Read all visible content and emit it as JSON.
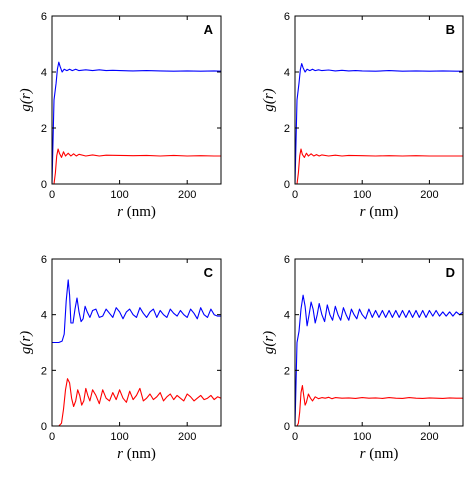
{
  "chart_data": [
    {
      "type": "line",
      "panel_label": "A",
      "xlabel": "r (nm)",
      "ylabel": "g(r)",
      "xlim": [
        0,
        250
      ],
      "ylim": [
        0,
        6
      ],
      "xticks": [
        "0",
        "100",
        "200"
      ],
      "yticks": [
        "0",
        "2",
        "4",
        "6"
      ],
      "grid": false,
      "series": [
        {
          "color": "#0000ff",
          "x": [
            0,
            3,
            6,
            8,
            10,
            12,
            15,
            18,
            22,
            26,
            30,
            35,
            40,
            50,
            60,
            70,
            80,
            90,
            100,
            120,
            140,
            160,
            180,
            200,
            220,
            240,
            250
          ],
          "y": [
            0,
            3.0,
            3.6,
            4.1,
            4.35,
            4.2,
            4.0,
            4.1,
            4.05,
            4.1,
            4.05,
            4.1,
            4.05,
            4.08,
            4.05,
            4.08,
            4.05,
            4.06,
            4.05,
            4.04,
            4.05,
            4.04,
            4.03,
            4.04,
            4.03,
            4.04,
            4.03
          ]
        },
        {
          "color": "#ff0000",
          "x": [
            0,
            3,
            5,
            7,
            9,
            11,
            14,
            17,
            20,
            24,
            28,
            32,
            36,
            40,
            50,
            60,
            70,
            80,
            100,
            120,
            140,
            160,
            180,
            200,
            220,
            240,
            250
          ],
          "y": [
            0,
            0.0,
            0.4,
            1.0,
            1.25,
            1.1,
            0.95,
            1.15,
            1.0,
            1.1,
            1.0,
            1.08,
            1.0,
            1.06,
            1.0,
            1.04,
            1.0,
            1.03,
            1.02,
            1.01,
            1.02,
            1.0,
            1.02,
            1.0,
            1.01,
            1.0,
            1.0
          ]
        }
      ]
    },
    {
      "type": "line",
      "panel_label": "B",
      "xlabel": "r (nm)",
      "ylabel": "g(r)",
      "xlim": [
        0,
        250
      ],
      "ylim": [
        0,
        6
      ],
      "xticks": [
        "0",
        "100",
        "200"
      ],
      "yticks": [
        "0",
        "2",
        "4",
        "6"
      ],
      "grid": false,
      "series": [
        {
          "color": "#0000ff",
          "x": [
            0,
            3,
            6,
            8,
            10,
            12,
            15,
            18,
            22,
            26,
            30,
            35,
            40,
            50,
            60,
            70,
            80,
            90,
            100,
            120,
            140,
            160,
            180,
            200,
            220,
            240,
            250
          ],
          "y": [
            0,
            3.0,
            3.6,
            4.1,
            4.3,
            4.15,
            4.0,
            4.1,
            4.05,
            4.1,
            4.05,
            4.08,
            4.05,
            4.07,
            4.04,
            4.06,
            4.04,
            4.05,
            4.04,
            4.03,
            4.05,
            4.03,
            4.04,
            4.03,
            4.04,
            4.03,
            4.03
          ]
        },
        {
          "color": "#ff0000",
          "x": [
            0,
            3,
            5,
            7,
            9,
            11,
            14,
            17,
            20,
            24,
            28,
            32,
            36,
            40,
            50,
            60,
            70,
            80,
            100,
            120,
            140,
            160,
            180,
            200,
            220,
            240,
            250
          ],
          "y": [
            0,
            0.0,
            0.4,
            1.0,
            1.25,
            1.05,
            0.95,
            1.1,
            1.0,
            1.08,
            1.0,
            1.05,
            1.0,
            1.04,
            1.0,
            1.03,
            1.0,
            1.02,
            1.01,
            1.0,
            1.01,
            1.0,
            1.01,
            1.0,
            1.0,
            1.0,
            1.0
          ]
        }
      ]
    },
    {
      "type": "line",
      "panel_label": "C",
      "xlabel": "r (nm)",
      "ylabel": "g(r)",
      "xlim": [
        0,
        250
      ],
      "ylim": [
        0,
        6
      ],
      "xticks": [
        "0",
        "100",
        "200"
      ],
      "yticks": [
        "0",
        "2",
        "4",
        "6"
      ],
      "grid": false,
      "series": [
        {
          "color": "#0000ff",
          "x": [
            0,
            10,
            15,
            18,
            21,
            24,
            26,
            28,
            31,
            34,
            37,
            40,
            43,
            46,
            49,
            52,
            56,
            60,
            65,
            70,
            75,
            80,
            85,
            90,
            95,
            100,
            105,
            110,
            115,
            120,
            125,
            130,
            135,
            140,
            145,
            150,
            155,
            160,
            165,
            170,
            175,
            180,
            185,
            190,
            195,
            200,
            205,
            210,
            215,
            220,
            225,
            230,
            235,
            240,
            245,
            250
          ],
          "y": [
            3.0,
            3.0,
            3.05,
            3.3,
            4.5,
            5.25,
            4.7,
            3.7,
            3.7,
            4.2,
            4.6,
            4.1,
            3.75,
            3.85,
            4.3,
            4.1,
            3.9,
            4.15,
            4.2,
            3.9,
            3.95,
            4.2,
            4.05,
            3.9,
            4.25,
            4.1,
            3.85,
            4.1,
            4.2,
            4.0,
            3.9,
            4.25,
            4.05,
            3.9,
            4.1,
            4.2,
            3.9,
            4.15,
            4.0,
            3.9,
            4.2,
            4.05,
            3.95,
            4.15,
            4.0,
            3.9,
            4.2,
            4.05,
            3.85,
            4.25,
            4.0,
            3.9,
            4.2,
            4.0,
            3.95,
            3.95
          ]
        },
        {
          "color": "#ff0000",
          "x": [
            0,
            10,
            14,
            17,
            20,
            23,
            26,
            29,
            32,
            35,
            38,
            41,
            44,
            47,
            50,
            53,
            56,
            60,
            65,
            70,
            75,
            80,
            85,
            90,
            95,
            100,
            105,
            110,
            115,
            120,
            125,
            130,
            135,
            140,
            145,
            150,
            155,
            160,
            165,
            170,
            175,
            180,
            185,
            190,
            195,
            200,
            205,
            210,
            215,
            220,
            225,
            230,
            235,
            240,
            245,
            250
          ],
          "y": [
            0.0,
            0.0,
            0.1,
            0.6,
            1.3,
            1.7,
            1.55,
            1.0,
            0.7,
            0.9,
            1.3,
            1.1,
            0.75,
            0.9,
            1.35,
            1.1,
            0.9,
            1.3,
            1.1,
            0.8,
            1.3,
            1.0,
            0.9,
            1.2,
            0.95,
            1.3,
            1.0,
            0.85,
            1.25,
            0.95,
            1.1,
            1.35,
            0.9,
            1.0,
            1.15,
            0.95,
            1.05,
            1.2,
            0.9,
            1.05,
            1.15,
            0.95,
            1.1,
            1.0,
            0.9,
            1.15,
            1.05,
            0.9,
            1.0,
            1.1,
            0.95,
            1.0,
            1.1,
            0.95,
            1.05,
            1.0
          ]
        }
      ]
    },
    {
      "type": "line",
      "panel_label": "D",
      "xlabel": "r (nm)",
      "ylabel": "g(r)",
      "xlim": [
        0,
        250
      ],
      "ylim": [
        0,
        6
      ],
      "xticks": [
        "0",
        "100",
        "200"
      ],
      "yticks": [
        "0",
        "2",
        "4",
        "6"
      ],
      "grid": false,
      "series": [
        {
          "color": "#0000ff",
          "x": [
            0,
            3,
            6,
            9,
            12,
            15,
            18,
            21,
            24,
            27,
            30,
            33,
            36,
            40,
            44,
            48,
            52,
            56,
            60,
            64,
            68,
            72,
            76,
            80,
            84,
            88,
            92,
            96,
            100,
            105,
            110,
            115,
            120,
            125,
            130,
            135,
            140,
            145,
            150,
            155,
            160,
            165,
            170,
            175,
            180,
            185,
            190,
            195,
            200,
            205,
            210,
            215,
            220,
            225,
            230,
            235,
            240,
            245,
            250
          ],
          "y": [
            0,
            3.0,
            3.4,
            4.2,
            4.7,
            4.3,
            3.6,
            4.0,
            4.45,
            4.2,
            3.7,
            4.0,
            4.4,
            4.0,
            3.75,
            4.35,
            4.0,
            3.8,
            4.3,
            4.0,
            3.8,
            4.25,
            4.0,
            3.8,
            4.2,
            4.0,
            3.85,
            4.2,
            4.0,
            3.85,
            4.2,
            3.9,
            4.15,
            3.9,
            4.15,
            3.9,
            4.15,
            3.9,
            4.15,
            3.9,
            4.15,
            3.9,
            4.15,
            3.9,
            4.15,
            3.9,
            4.15,
            3.9,
            4.15,
            3.95,
            4.15,
            3.95,
            4.1,
            3.95,
            4.1,
            3.95,
            4.1,
            4.0,
            4.1
          ]
        },
        {
          "color": "#ff0000",
          "x": [
            0,
            3,
            5,
            7,
            9,
            11,
            13,
            15,
            17,
            20,
            23,
            26,
            30,
            35,
            40,
            45,
            50,
            55,
            60,
            70,
            80,
            90,
            100,
            110,
            120,
            130,
            140,
            150,
            160,
            170,
            180,
            190,
            200,
            210,
            220,
            230,
            240,
            250
          ],
          "y": [
            0,
            0.0,
            0.1,
            0.5,
            1.2,
            1.45,
            1.1,
            0.75,
            0.85,
            1.15,
            1.0,
            0.9,
            1.05,
            0.98,
            1.02,
            1.0,
            1.03,
            0.98,
            1.02,
            1.0,
            1.01,
            0.99,
            1.02,
            1.0,
            1.01,
            0.99,
            1.02,
            1.0,
            0.99,
            1.02,
            1.0,
            0.99,
            1.01,
            1.0,
            0.99,
            1.01,
            1.0,
            1.0
          ]
        }
      ]
    }
  ]
}
